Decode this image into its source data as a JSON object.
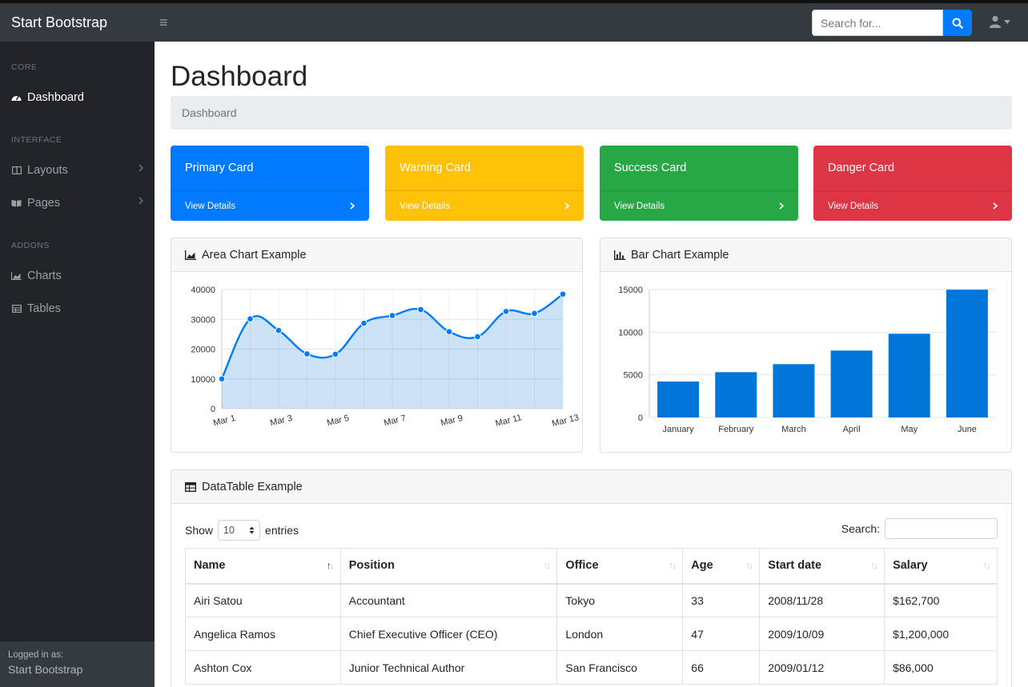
{
  "brand": "Start Bootstrap",
  "search": {
    "placeholder": "Search for..."
  },
  "sidebar": {
    "sections": [
      {
        "heading": "CORE",
        "items": [
          {
            "label": "Dashboard",
            "icon": "tachometer-icon",
            "active": true
          }
        ]
      },
      {
        "heading": "INTERFACE",
        "items": [
          {
            "label": "Layouts",
            "icon": "columns-icon"
          },
          {
            "label": "Pages",
            "icon": "book-icon"
          }
        ]
      },
      {
        "heading": "ADDONS",
        "items": [
          {
            "label": "Charts",
            "icon": "area-chart-icon"
          },
          {
            "label": "Tables",
            "icon": "table-icon"
          }
        ]
      }
    ],
    "footer": {
      "logged_label": "Logged in as:",
      "user": "Start Bootstrap"
    }
  },
  "page": {
    "title": "Dashboard",
    "breadcrumb": "Dashboard"
  },
  "cards": [
    {
      "title": "Primary Card",
      "link": "View Details",
      "color": "#007bff"
    },
    {
      "title": "Warning Card",
      "link": "View Details",
      "color": "#ffc107"
    },
    {
      "title": "Success Card",
      "link": "View Details",
      "color": "#28a745"
    },
    {
      "title": "Danger Card",
      "link": "View Details",
      "color": "#dc3545"
    }
  ],
  "area_chart": {
    "title": "Area Chart Example"
  },
  "bar_chart": {
    "title": "Bar Chart Example"
  },
  "chart_data": [
    {
      "type": "area",
      "title": "Area Chart Example",
      "x": [
        "Mar 1",
        "Mar 2",
        "Mar 3",
        "Mar 4",
        "Mar 5",
        "Mar 6",
        "Mar 7",
        "Mar 8",
        "Mar 9",
        "Mar 10",
        "Mar 11",
        "Mar 12",
        "Mar 13"
      ],
      "x_tick_labels": [
        "Mar 1",
        "Mar 3",
        "Mar 5",
        "Mar 7",
        "Mar 9",
        "Mar 11",
        "Mar 13"
      ],
      "values": [
        10000,
        30162,
        26263,
        18394,
        18287,
        28682,
        31274,
        33259,
        25849,
        24159,
        32651,
        31984,
        38451
      ],
      "ylim": [
        0,
        40000
      ],
      "y_ticks": [
        0,
        10000,
        20000,
        30000,
        40000
      ],
      "color": "#007bff",
      "fill": "rgba(2,117,216,0.2)"
    },
    {
      "type": "bar",
      "title": "Bar Chart Example",
      "categories": [
        "January",
        "February",
        "March",
        "April",
        "May",
        "June"
      ],
      "values": [
        4215,
        5312,
        6251,
        7841,
        9821,
        14984
      ],
      "ylim": [
        0,
        15000
      ],
      "y_ticks": [
        0,
        5000,
        10000,
        15000
      ],
      "color": "#0275d8"
    }
  ],
  "datatable": {
    "title": "DataTable Example",
    "show_label": "Show",
    "show_value": "10",
    "entries_label": "entries",
    "search_label": "Search:",
    "columns": [
      "Name",
      "Position",
      "Office",
      "Age",
      "Start date",
      "Salary"
    ],
    "rows": [
      [
        "Airi Satou",
        "Accountant",
        "Tokyo",
        "33",
        "2008/11/28",
        "$162,700"
      ],
      [
        "Angelica Ramos",
        "Chief Executive Officer (CEO)",
        "London",
        "47",
        "2009/10/09",
        "$1,200,000"
      ],
      [
        "Ashton Cox",
        "Junior Technical Author",
        "San Francisco",
        "66",
        "2009/01/12",
        "$86,000"
      ]
    ]
  }
}
